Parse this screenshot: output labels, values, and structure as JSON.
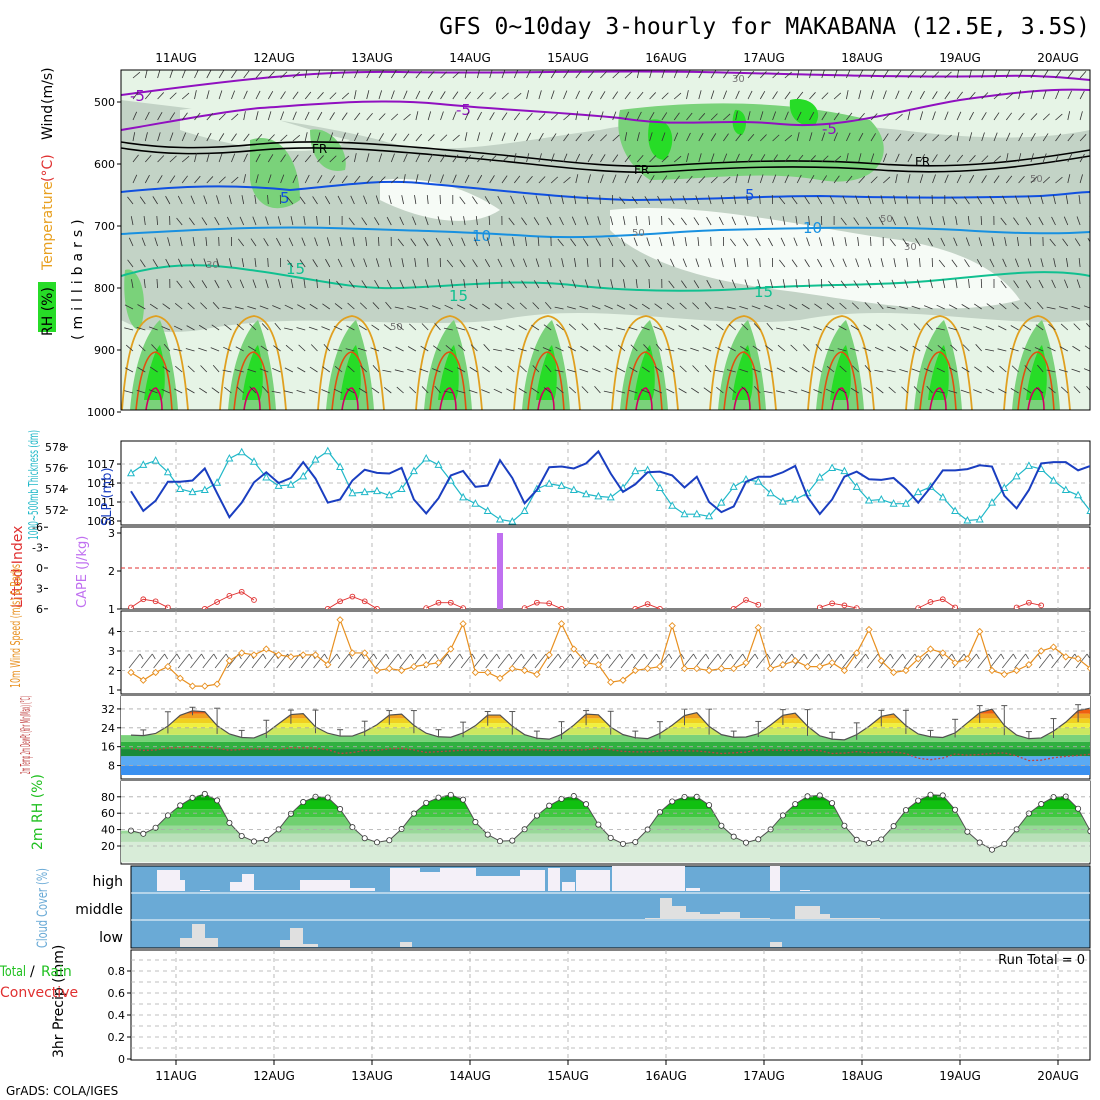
{
  "title": "GFS 0~10day 3-hourly for MAKABANA (12.5E, 3.5S)",
  "footer": "GrADS: COLA/IGES",
  "run_total": "Run Total = 0",
  "dates": [
    "11AUG",
    "12AUG",
    "13AUG",
    "14AUG",
    "15AUG",
    "16AUG",
    "17AUG",
    "18AUG",
    "19AUG",
    "20AUG"
  ],
  "colors": {
    "rh_light": "#e6f4e6",
    "rh_mid": "#c3d3c6",
    "rh_green": "#7ad27a",
    "rh_bright": "#27dc27",
    "iso_purple": "#9010c0",
    "iso_blue": "#1050e0",
    "iso_lblue": "#1890e0",
    "iso_teal": "#10c090",
    "iso_orange": "#e0a020",
    "iso_red": "#e05010",
    "iso_magenta": "#d00060",
    "slp": "#1a3ec0",
    "thickness": "#20b8c8",
    "lifted": "#e03030",
    "cape": "#c070f0",
    "wind": "#e89020",
    "dewpt": "#c04040",
    "rh2m": "#20c020",
    "cloud": "#6aaad6",
    "cloud_gap": "#f4f0f8"
  },
  "chart_data": [
    {
      "type": "heatmap",
      "name_y": "Temperature (°C) Wind (m/s) RH (%)",
      "ylabel_parts": [
        "RH (%)",
        "Temperature",
        "(°C)",
        "Wind",
        "(m/s)",
        "(millibars)"
      ],
      "y_ticks": [
        500,
        600,
        700,
        800,
        900,
        1000
      ],
      "isotherm_labels": [
        "-5",
        "FR",
        "5",
        "10",
        "15"
      ],
      "rh_labels": [
        "30",
        "50"
      ]
    },
    {
      "type": "line",
      "ylabel_left": "1000~500mb Thickness (dm)",
      "ylabel_right": "SLP (mb)",
      "left_ticks": [
        572,
        574,
        576,
        578
      ],
      "right_ticks": [
        1008,
        1011,
        1014,
        1017
      ],
      "x": [
        0,
        1,
        2,
        3,
        4,
        5,
        6,
        7,
        8,
        9,
        10,
        11,
        12,
        13,
        14,
        15,
        16,
        17,
        18,
        19,
        20,
        21,
        22,
        23,
        24,
        25,
        26,
        27,
        28,
        29,
        30,
        31,
        32,
        33,
        34,
        35,
        36,
        37,
        38,
        39,
        40,
        41,
        42,
        43,
        44,
        45,
        46,
        47,
        48,
        49,
        50,
        51,
        52,
        53,
        54,
        55,
        56,
        57,
        58,
        59,
        60,
        61,
        62,
        63,
        64,
        65,
        66,
        67,
        68,
        69,
        70,
        71,
        72,
        73,
        74,
        75,
        76,
        77,
        78,
        79,
        80
      ],
      "series": [
        {
          "name": "SLP (mb)",
          "values": [
            1012.7,
            1009.6,
            1011.2,
            1014.2,
            1014.2,
            1014.4,
            1016.3,
            1012.4,
            1008.6,
            1010.9,
            1014.1,
            1015.7,
            1014.0,
            1014.8,
            1017.3,
            1014.7,
            1010.9,
            1011.4,
            1014.4,
            1016.1,
            1015.6,
            1015.5,
            1016.4,
            1011.4,
            1009.2,
            1011.6,
            1015.2,
            1015.9,
            1013.4,
            1013.6,
            1017.6,
            1014.8,
            1010.8,
            1012.9,
            1016.5,
            1016.6,
            1016.3,
            1017.1,
            1019.0,
            1015.5,
            1012.6,
            1013.8,
            1015.7,
            1015.8,
            1015.2,
            1013.3,
            1015.0,
            1011.0,
            1009.4,
            1010.3,
            1014.2,
            1015.0,
            1015.0,
            1015.7,
            1016.7,
            1011.8,
            1009.1,
            1011.4,
            1015.0,
            1015.8,
            1014.6,
            1014.5,
            1014.8,
            1013.1,
            1010.9,
            1013.3,
            1016.0,
            1016.0,
            1016.2,
            1016.8,
            1016.6,
            1012.0,
            1010.0,
            1012.9,
            1017.1,
            1017.3,
            1017.3,
            1016.0,
            1016.7,
            1016.9,
            1018.1
          ]
        },
        {
          "name": "1000~500mb Thickness (dm)",
          "values": [
            575.5,
            576.3,
            576.7,
            575.6,
            574.0,
            573.7,
            573.9,
            574.6,
            576.9,
            577.5,
            576.6,
            575.1,
            574.3,
            574.4,
            575.2,
            576.8,
            577.6,
            576.1,
            573.6,
            573.7,
            573.8,
            573.4,
            574.0,
            575.7,
            576.9,
            576.3,
            574.8,
            573.2,
            572.6,
            571.9,
            571.1,
            570.9,
            571.9,
            574.0,
            574.5,
            574.3,
            573.9,
            573.5,
            573.3,
            573.2,
            574.1,
            575.7,
            575.8,
            574.1,
            572.4,
            571.6,
            571.6,
            571.4,
            572.7,
            574.2,
            574.9,
            574.7,
            573.6,
            572.8,
            573.0,
            573.6,
            575.1,
            576.0,
            575.7,
            574.2,
            572.9,
            573.0,
            572.6,
            572.6,
            573.7,
            574.2,
            573.2,
            571.9,
            571.0,
            571.1,
            572.7,
            574.1,
            575.2,
            576.2,
            575.9,
            574.8,
            573.9,
            573.4,
            571.9,
            571.7,
            571.9
          ]
        }
      ]
    },
    {
      "type": "line",
      "ylabel_left": "Lifted Index",
      "ylabel_right": "CAPE (J/kg)",
      "left_ticks": [
        -6,
        -3,
        0,
        3,
        6
      ],
      "right_ticks": [
        1,
        2,
        3
      ],
      "series": [
        {
          "name": "Lifted Index",
          "x": [
            0,
            1,
            2,
            3,
            6,
            7,
            8,
            9,
            10,
            16,
            17,
            18,
            19,
            20,
            24,
            25,
            26,
            27,
            32,
            33,
            34,
            35,
            41,
            42,
            43,
            49,
            50,
            51,
            56,
            57,
            58,
            59,
            64,
            65,
            66,
            67,
            72,
            73,
            74,
            79,
            80,
            81,
            82
          ],
          "values": [
            5.8,
            4.6,
            4.9,
            5.8,
            6.0,
            5.0,
            4.1,
            3.5,
            4.7,
            6.0,
            4.9,
            4.2,
            4.9,
            6.0,
            5.9,
            5.1,
            5.1,
            5.9,
            5.9,
            5.1,
            5.2,
            6.0,
            6.0,
            5.3,
            6.0,
            6.0,
            4.7,
            5.4,
            5.8,
            5.2,
            5.5,
            5.9,
            5.9,
            5.0,
            4.6,
            5.8,
            5.8,
            5.1,
            5.5,
            5.8,
            5.2,
            5.5,
            5.8
          ]
        },
        {
          "name": "CAPE (J/kg)",
          "x": [
            30
          ],
          "values": [
            3.0
          ]
        }
      ]
    },
    {
      "type": "line",
      "ylabel": "10m Wind Speed (m/s) & Barbs",
      "y_ticks": [
        1,
        2,
        3,
        4
      ],
      "series": [
        {
          "name": "10m Wind Speed",
          "values": [
            1.9,
            1.5,
            1.9,
            2.2,
            1.6,
            1.2,
            1.2,
            1.3,
            2.5,
            2.9,
            2.8,
            3.1,
            2.8,
            2.7,
            2.8,
            2.8,
            2.3,
            4.6,
            2.9,
            2.9,
            2.0,
            2.1,
            2.0,
            2.2,
            2.3,
            2.4,
            3.1,
            4.4,
            1.9,
            1.9,
            1.6,
            2.1,
            2.0,
            1.8,
            2.8,
            4.4,
            3.1,
            2.4,
            2.3,
            1.4,
            1.5,
            2.0,
            2.1,
            2.2,
            4.3,
            2.1,
            2.1,
            2.0,
            2.1,
            2.1,
            2.4,
            4.2,
            2.1,
            2.3,
            2.5,
            2.2,
            2.2,
            2.4,
            2.0,
            2.9,
            4.1,
            2.5,
            1.9,
            2.0,
            2.6,
            3.1,
            2.9,
            2.4,
            2.6,
            4.0,
            2.0,
            1.8,
            2.0,
            2.3,
            3.0,
            3.2,
            2.7,
            2.6,
            2.1,
            1.6
          ]
        }
      ]
    },
    {
      "type": "area",
      "ylabel": "2m Temp 2m DewPt (6hr Min/Max) (°C)",
      "y_ticks": [
        8,
        16,
        24,
        32
      ],
      "series": [
        {
          "name": "2m Temp",
          "values": [
            20.9,
            20.7,
            21.6,
            24.7,
            29.3,
            31.2,
            30.8,
            24.9,
            21.4,
            19.9,
            19.7,
            21.8,
            25.7,
            29.6,
            30.0,
            24.4,
            21.7,
            20.5,
            20.5,
            22.4,
            25.3,
            29.4,
            29.8,
            25.0,
            21.7,
            20.2,
            20.0,
            21.8,
            24.9,
            29.4,
            29.4,
            24.7,
            21.1,
            19.6,
            19.2,
            21.2,
            25.1,
            29.8,
            29.5,
            24.3,
            21.1,
            19.8,
            19.4,
            21.6,
            25.1,
            29.2,
            30.4,
            24.6,
            21.1,
            20.0,
            20.1,
            21.5,
            25.2,
            29.3,
            30.2,
            24.7,
            20.6,
            19.2,
            18.9,
            21.1,
            24.6,
            28.8,
            29.9,
            24.9,
            21.4,
            20.2,
            19.9,
            21.8,
            26.1,
            30.4,
            31.9,
            25.0,
            20.9,
            19.4,
            19.7,
            22.6,
            26.4,
            31.3,
            32.3,
            24.5,
            20.9,
            19.6,
            19.3
          ]
        },
        {
          "name": "2m DewPt",
          "values": [
            15.2,
            14.4,
            14.6,
            15.4,
            15.7,
            16.0,
            15.8,
            15.3,
            14.5,
            14.8,
            15.1,
            15.0,
            14.7,
            15.6,
            15.5,
            15.4,
            14.7,
            13.1,
            13.5,
            14.4,
            14.4,
            15.1,
            15.3,
            14.6,
            13.6,
            13.9,
            14.2,
            14.5,
            14.6,
            14.3,
            14.6,
            14.6,
            14.6,
            14.7,
            14.4,
            14.5,
            14.5,
            14.7,
            15.4,
            14.7,
            14.0,
            13.8,
            13.8,
            14.1,
            14.4,
            14.2,
            14.2,
            13.7,
            13.1,
            13.4,
            13.7,
            14.7,
            14.5,
            14.5,
            14.3,
            14.6,
            14.3,
            13.1,
            13.3,
            13.9,
            13.4,
            13.6,
            13.8,
            13.1,
            11.1,
            10.5,
            11.2,
            12.9,
            12.4,
            12.7,
            13.1,
            13.4,
            12.1,
            10.1,
            10.3,
            11.3,
            11.9,
            12.3,
            12.8,
            12.2,
            11.3,
            11.2,
            11.9
          ]
        }
      ]
    },
    {
      "type": "area",
      "ylabel": "2m RH (%)",
      "y_ticks": [
        20,
        40,
        60,
        80
      ],
      "series": [
        {
          "name": "2m RH",
          "values": [
            38.8,
            34.9,
            42.3,
            57.3,
            69.5,
            78.8,
            83.5,
            75.6,
            48.2,
            32.2,
            25.6,
            27.4,
            40.2,
            59.4,
            73.6,
            80.1,
            79.2,
            65.1,
            43.0,
            29.5,
            24.5,
            27.0,
            40.7,
            59.6,
            72.6,
            79.0,
            82.4,
            76.5,
            49.2,
            33.9,
            25.9,
            26.6,
            40.4,
            57.1,
            69.2,
            77.4,
            80.9,
            71.0,
            46.1,
            29.9,
            22.6,
            24.8,
            40.1,
            61.3,
            74.3,
            79.8,
            80.0,
            69.9,
            44.7,
            31.4,
            24.1,
            28.2,
            40.2,
            57.3,
            71.1,
            80.6,
            81.7,
            72.3,
            44.7,
            27.6,
            23.7,
            28.0,
            44.2,
            63.8,
            75.4,
            82.5,
            81.7,
            64.2,
            37.4,
            24.2,
            15.5,
            22.5,
            40.3,
            59.7,
            71.2,
            79.6,
            80.3,
            65.5,
            38.0,
            22.4,
            17.8,
            23.6,
            42.4,
            61.5,
            73.0,
            80.2,
            82.0
          ]
        }
      ]
    },
    {
      "type": "bar",
      "ylabel": "Cloud Cover (%)",
      "categories": [
        "high",
        "middle",
        "low"
      ]
    },
    {
      "type": "bar",
      "ylabel": "3hr Precip (mm)",
      "legend": [
        "Total",
        "Rain",
        "Convective"
      ],
      "y_ticks": [
        "0",
        "0.2",
        "0.4",
        "0.6",
        "0.8"
      ],
      "values": [
        0
      ]
    }
  ]
}
